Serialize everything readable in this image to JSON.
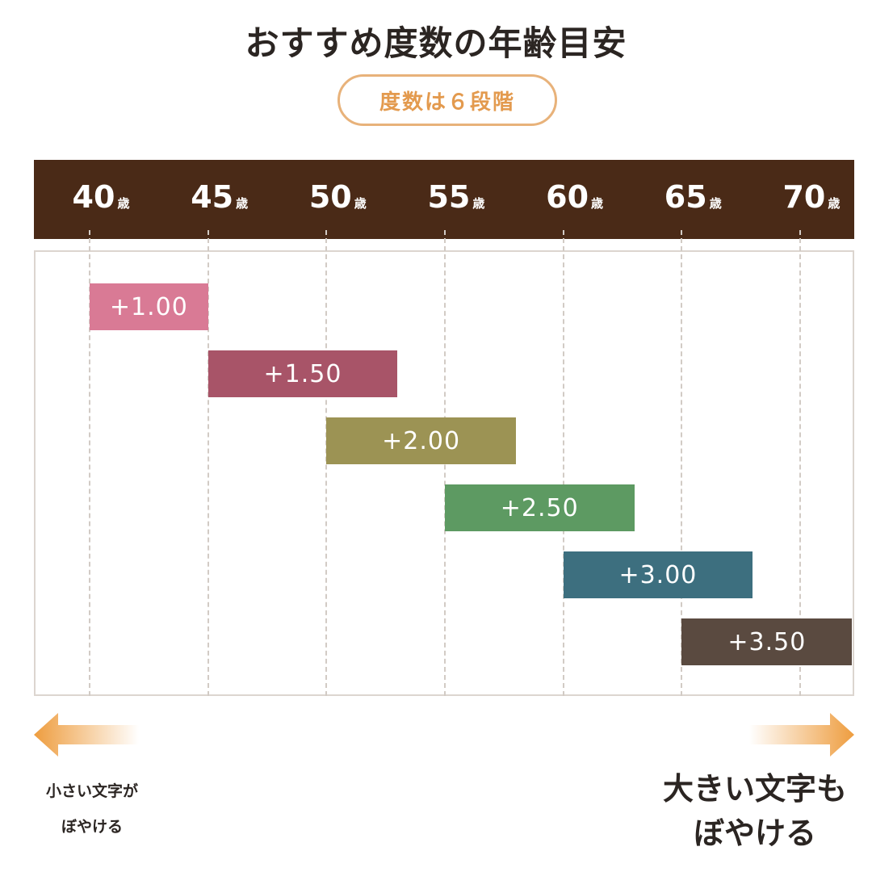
{
  "title": "おすすめ度数の年齢目安",
  "badge": "度数は６段階",
  "notes": {
    "left_line1": "小さい文字が",
    "left_line2": "ぼやける",
    "right_line1": "大きい文字も",
    "right_line2": "ぼやける"
  },
  "colors": {
    "header": "#4a2a17",
    "badge_border": "#e8b27a",
    "arrow": "#ee9d3f"
  },
  "chart_data": {
    "type": "bar",
    "orientation": "horizontal-range",
    "x_unit": "歳",
    "x_ticks": [
      40,
      45,
      50,
      55,
      60,
      65,
      70
    ],
    "xlim": [
      40,
      70
    ],
    "grid": true,
    "series": [
      {
        "label": "+1.00",
        "start": 40,
        "end": 45,
        "color": "#d97a95"
      },
      {
        "label": "+1.50",
        "start": 45,
        "end": 53,
        "color": "#a85468"
      },
      {
        "label": "+2.00",
        "start": 50,
        "end": 58,
        "color": "#9c9354"
      },
      {
        "label": "+2.50",
        "start": 55,
        "end": 63,
        "color": "#5d9a62"
      },
      {
        "label": "+3.00",
        "start": 60,
        "end": 68,
        "color": "#3d6f7f"
      },
      {
        "label": "+3.50",
        "start": 65,
        "end": 72.2,
        "color": "#5a4a40"
      }
    ]
  }
}
